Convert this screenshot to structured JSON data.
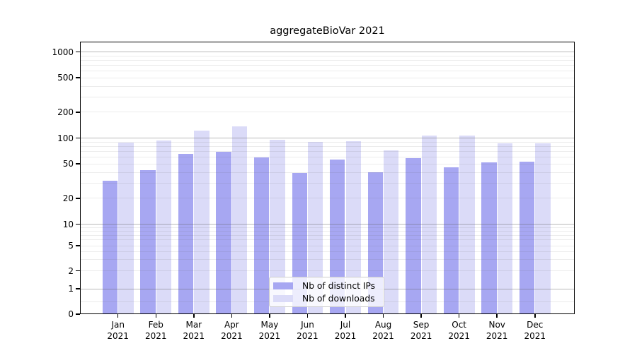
{
  "chart_data": {
    "type": "bar",
    "title": "aggregateBioVar 2021",
    "categories": [
      "Jan",
      "Feb",
      "Mar",
      "Apr",
      "May",
      "Jun",
      "Jul",
      "Aug",
      "Sep",
      "Oct",
      "Nov",
      "Dec"
    ],
    "category_year": "2021",
    "series": [
      {
        "name": "Nb of distinct IPs",
        "color": "#a7a7f2",
        "values": [
          32,
          42,
          65,
          69,
          59,
          39,
          56,
          40,
          58,
          46,
          52,
          53
        ]
      },
      {
        "name": "Nb of downloads",
        "color": "#dbdbf8",
        "values": [
          89,
          93,
          122,
          137,
          96,
          90,
          92,
          72,
          107,
          107,
          86,
          87
        ]
      }
    ],
    "y_scale": "symlog",
    "y_ticks": [
      0,
      1,
      2,
      5,
      10,
      20,
      50,
      100,
      200,
      500,
      1000
    ],
    "ylim": [
      0,
      1300
    ],
    "grid": true,
    "legend_position": "bottom-center",
    "xlabel": "",
    "ylabel": "",
    "grid_major_color": "#ababab",
    "grid_minor_color": "#ececec",
    "axis_color": "#000000"
  }
}
